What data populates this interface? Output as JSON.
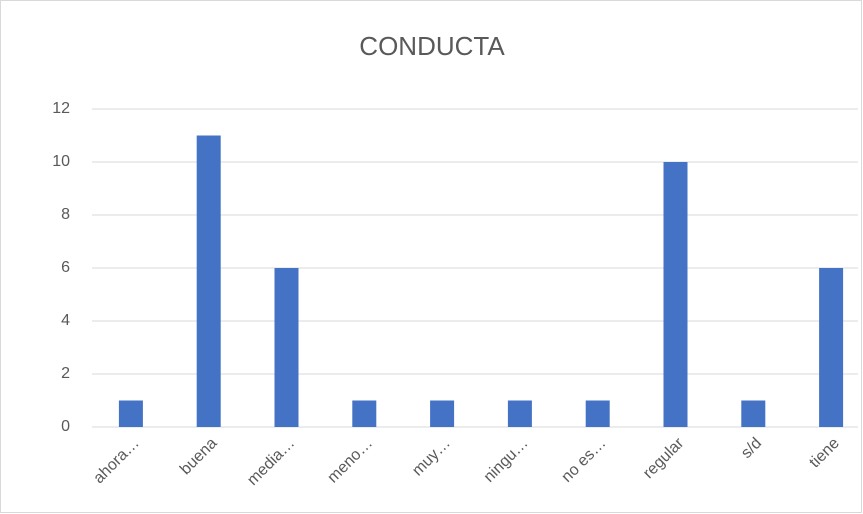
{
  "chart_data": {
    "type": "bar",
    "title": "CONDUCTA",
    "categories": [
      "ahora…",
      "buena",
      "media…",
      "meno…",
      "muy…",
      "ningu…",
      "no es…",
      "regular",
      "s/d",
      "tiene"
    ],
    "values": [
      1,
      11,
      6,
      1,
      1,
      1,
      1,
      10,
      1,
      6
    ],
    "color": "#4472c4",
    "ylim": [
      0,
      12
    ],
    "yticks": [
      0,
      2,
      4,
      6,
      8,
      10,
      12
    ],
    "grid": true
  }
}
